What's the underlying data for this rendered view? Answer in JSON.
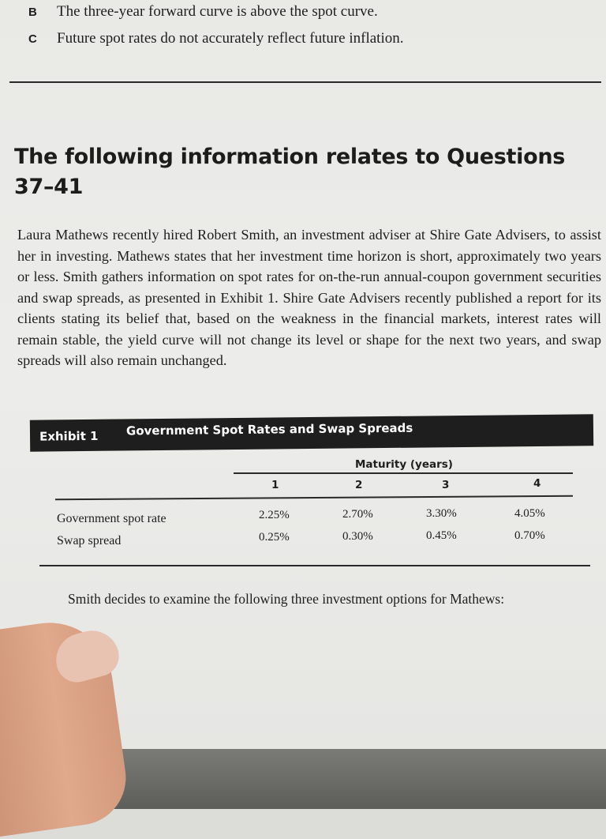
{
  "options": [
    {
      "letter": "B",
      "text": "The three-year forward curve is above the spot curve."
    },
    {
      "letter": "C",
      "text": "Future spot rates do not accurately reflect future inflation."
    }
  ],
  "heading": "The following information relates to Questions 37–41",
  "paragraph": "Laura Mathews recently hired Robert Smith, an investment adviser at Shire Gate Advisers, to assist her in investing. Mathews states that her investment time horizon is short, approximately two years or less. Smith gathers information on spot rates for on-the-run annual-coupon government securities and swap spreads, as presented in Exhibit 1. Shire Gate Advisers recently published a report for its clients stating its belief that, based on the weakness in the financial markets, interest rates will remain stable, the yield curve will not change its level or shape for the next two years, and swap spreads will also remain unchanged.",
  "exhibit": {
    "label": "Exhibit 1",
    "title": "Government Spot Rates and Swap Spreads",
    "column_group": "Maturity (years)",
    "columns": [
      "1",
      "2",
      "3",
      "4"
    ],
    "rows": [
      {
        "label": "Government spot rate",
        "values": [
          "2.25%",
          "2.70%",
          "3.30%",
          "4.05%"
        ]
      },
      {
        "label": "Swap spread",
        "values": [
          "0.25%",
          "0.30%",
          "0.45%",
          "0.70%"
        ]
      }
    ]
  },
  "closing": "Smith decides to examine the following three investment options for Mathews:"
}
